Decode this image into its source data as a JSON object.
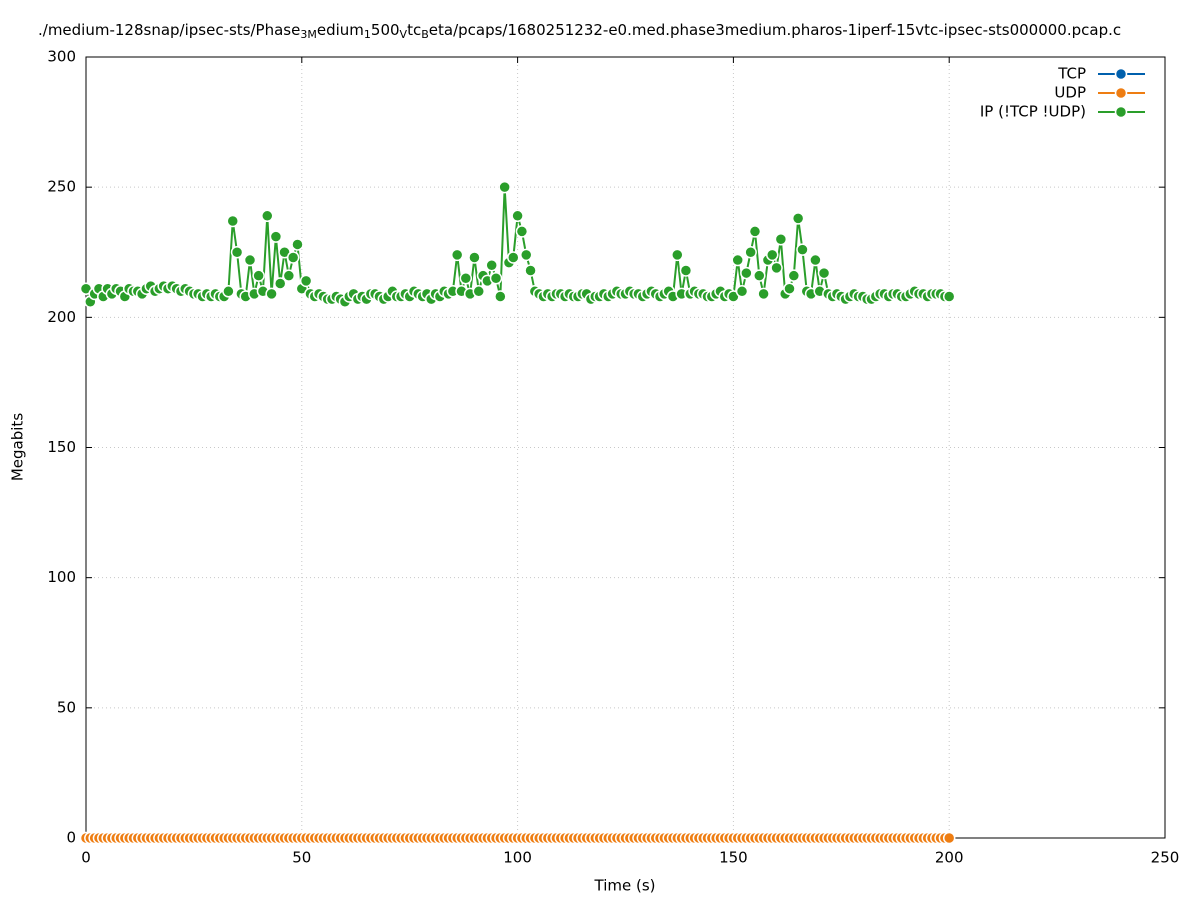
{
  "chart_data": {
    "type": "line",
    "title_parts": [
      {
        "text": "./medium-128snap/ipsec-sts/Phase",
        "sub": false
      },
      {
        "text": "3M",
        "sub": true
      },
      {
        "text": "edium",
        "sub": false
      },
      {
        "text": "1",
        "sub": true
      },
      {
        "text": "500",
        "sub": false
      },
      {
        "text": "V",
        "sub": true
      },
      {
        "text": "tc",
        "sub": false
      },
      {
        "text": "B",
        "sub": true
      },
      {
        "text": "eta/pcaps/1680251232-e0.med.phase3medium.pharos-1iperf-15vtc-ipsec-sts000000.pcap.c",
        "sub": false
      }
    ],
    "x_label": "Time (s)",
    "y_label": "Megabits",
    "xlim": [
      0,
      250
    ],
    "xticks": [
      0,
      50,
      100,
      150,
      200,
      250
    ],
    "ylim": [
      0,
      300
    ],
    "yticks": [
      0,
      50,
      100,
      150,
      200,
      250,
      300
    ],
    "grid": true,
    "legend": "top-right",
    "x": [
      0,
      1,
      2,
      3,
      4,
      5,
      6,
      7,
      8,
      9,
      10,
      11,
      12,
      13,
      14,
      15,
      16,
      17,
      18,
      19,
      20,
      21,
      22,
      23,
      24,
      25,
      26,
      27,
      28,
      29,
      30,
      31,
      32,
      33,
      34,
      35,
      36,
      37,
      38,
      39,
      40,
      41,
      42,
      43,
      44,
      45,
      46,
      47,
      48,
      49,
      50,
      51,
      52,
      53,
      54,
      55,
      56,
      57,
      58,
      59,
      60,
      61,
      62,
      63,
      64,
      65,
      66,
      67,
      68,
      69,
      70,
      71,
      72,
      73,
      74,
      75,
      76,
      77,
      78,
      79,
      80,
      81,
      82,
      83,
      84,
      85,
      86,
      87,
      88,
      89,
      90,
      91,
      92,
      93,
      94,
      95,
      96,
      97,
      98,
      99,
      100,
      101,
      102,
      103,
      104,
      105,
      106,
      107,
      108,
      109,
      110,
      111,
      112,
      113,
      114,
      115,
      116,
      117,
      118,
      119,
      120,
      121,
      122,
      123,
      124,
      125,
      126,
      127,
      128,
      129,
      130,
      131,
      132,
      133,
      134,
      135,
      136,
      137,
      138,
      139,
      140,
      141,
      142,
      143,
      144,
      145,
      146,
      147,
      148,
      149,
      150,
      151,
      152,
      153,
      154,
      155,
      156,
      157,
      158,
      159,
      160,
      161,
      162,
      163,
      164,
      165,
      166,
      167,
      168,
      169,
      170,
      171,
      172,
      173,
      174,
      175,
      176,
      177,
      178,
      179,
      180,
      181,
      182,
      183,
      184,
      185,
      186,
      187,
      188,
      189,
      190,
      191,
      192,
      193,
      194,
      195,
      196,
      197,
      198,
      199,
      200
    ],
    "series": [
      {
        "name": "TCP",
        "color": "#0060ad",
        "values": [
          null,
          null,
          null,
          null,
          null,
          null,
          null,
          null,
          null,
          null,
          null,
          null,
          null,
          null,
          null,
          null,
          null,
          null,
          null,
          null,
          null,
          null,
          null,
          null,
          null,
          null,
          null,
          null,
          null,
          null,
          null,
          null,
          null,
          null,
          null,
          null,
          null,
          null,
          null,
          null,
          null,
          null,
          null,
          null,
          null,
          null,
          null,
          null,
          null,
          null,
          null,
          null,
          null,
          null,
          null,
          null,
          null,
          null,
          null,
          null,
          null,
          null,
          null,
          null,
          null,
          null,
          null,
          null,
          null,
          null,
          null,
          null,
          null,
          null,
          null,
          null,
          null,
          null,
          null,
          null,
          null,
          null,
          null,
          null,
          null,
          null,
          null,
          null,
          null,
          null,
          null,
          null,
          null,
          null,
          null,
          null,
          null,
          null,
          null,
          null,
          null,
          null,
          null,
          null,
          null,
          null,
          null,
          null,
          null,
          null,
          null,
          null,
          null,
          null,
          null,
          null,
          null,
          null,
          null,
          null,
          null,
          null,
          null,
          null,
          null,
          null,
          null,
          null,
          null,
          null,
          null,
          null,
          null,
          null,
          null,
          null,
          null,
          null,
          null,
          null,
          null,
          null,
          null,
          null,
          null,
          null,
          null,
          null,
          null,
          null,
          null,
          null,
          null,
          null,
          null,
          null,
          null,
          null,
          null,
          null,
          null,
          null,
          null,
          null,
          null,
          null,
          null,
          null,
          null,
          null,
          null,
          null,
          null,
          null,
          null,
          null,
          null,
          null,
          null,
          null,
          null,
          null,
          null,
          null,
          null,
          null,
          null,
          null,
          null,
          null,
          null,
          null,
          null,
          null,
          null,
          null,
          null,
          null,
          null,
          null,
          null
        ]
      },
      {
        "name": "UDP",
        "color": "#ee7d12",
        "values": [
          0,
          0,
          0,
          0,
          0,
          0,
          0,
          0,
          0,
          0,
          0,
          0,
          0,
          0,
          0,
          0,
          0,
          0,
          0,
          0,
          0,
          0,
          0,
          0,
          0,
          0,
          0,
          0,
          0,
          0,
          0,
          0,
          0,
          0,
          0,
          0,
          0,
          0,
          0,
          0,
          0,
          0,
          0,
          0,
          0,
          0,
          0,
          0,
          0,
          0,
          0,
          0,
          0,
          0,
          0,
          0,
          0,
          0,
          0,
          0,
          0,
          0,
          0,
          0,
          0,
          0,
          0,
          0,
          0,
          0,
          0,
          0,
          0,
          0,
          0,
          0,
          0,
          0,
          0,
          0,
          0,
          0,
          0,
          0,
          0,
          0,
          0,
          0,
          0,
          0,
          0,
          0,
          0,
          0,
          0,
          0,
          0,
          0,
          0,
          0,
          0,
          0,
          0,
          0,
          0,
          0,
          0,
          0,
          0,
          0,
          0,
          0,
          0,
          0,
          0,
          0,
          0,
          0,
          0,
          0,
          0,
          0,
          0,
          0,
          0,
          0,
          0,
          0,
          0,
          0,
          0,
          0,
          0,
          0,
          0,
          0,
          0,
          0,
          0,
          0,
          0,
          0,
          0,
          0,
          0,
          0,
          0,
          0,
          0,
          0,
          0,
          0,
          0,
          0,
          0,
          0,
          0,
          0,
          0,
          0,
          0,
          0,
          0,
          0,
          0,
          0,
          0,
          0,
          0,
          0,
          0,
          0,
          0,
          0,
          0,
          0,
          0,
          0,
          0,
          0,
          0,
          0,
          0,
          0,
          0,
          0,
          0,
          0,
          0,
          0,
          0,
          0,
          0,
          0,
          0,
          0,
          0,
          0,
          0,
          0,
          0
        ]
      },
      {
        "name": "IP (!TCP  !UDP)",
        "color": "#2a9e2a",
        "values": [
          211,
          206,
          209,
          211,
          208,
          211,
          209,
          211,
          210,
          208,
          211,
          210,
          210,
          209,
          211,
          212,
          210,
          211,
          212,
          211,
          212,
          211,
          210,
          211,
          210,
          209,
          209,
          208,
          209,
          208,
          209,
          208,
          208,
          210,
          237,
          225,
          209,
          208,
          222,
          209,
          216,
          210,
          239,
          209,
          231,
          213,
          225,
          216,
          223,
          228,
          211,
          214,
          209,
          208,
          209,
          208,
          207,
          207,
          208,
          207,
          206,
          208,
          209,
          207,
          208,
          207,
          209,
          209,
          208,
          207,
          208,
          210,
          208,
          208,
          209,
          208,
          210,
          209,
          208,
          209,
          207,
          209,
          208,
          210,
          209,
          210,
          224,
          210,
          215,
          209,
          223,
          210,
          216,
          214,
          220,
          215,
          208,
          250,
          221,
          223,
          239,
          233,
          224,
          218,
          210,
          209,
          208,
          209,
          208,
          209,
          209,
          208,
          209,
          208,
          208,
          209,
          209,
          207,
          208,
          208,
          209,
          208,
          209,
          210,
          209,
          209,
          210,
          209,
          209,
          208,
          209,
          210,
          209,
          208,
          209,
          210,
          208,
          224,
          209,
          218,
          209,
          210,
          209,
          209,
          208,
          208,
          209,
          210,
          208,
          209,
          208,
          222,
          210,
          217,
          225,
          233,
          216,
          209,
          222,
          224,
          219,
          230,
          209,
          211,
          216,
          238,
          226,
          210,
          209,
          222,
          210,
          217,
          209,
          208,
          209,
          208,
          207,
          208,
          209,
          208,
          208,
          207,
          207,
          208,
          209,
          209,
          208,
          209,
          209,
          208,
          208,
          209,
          210,
          209,
          209,
          208,
          209,
          209,
          209,
          208,
          208
        ]
      }
    ]
  }
}
